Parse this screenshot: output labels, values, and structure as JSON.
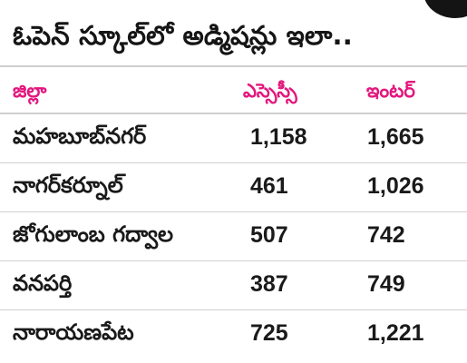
{
  "title": "ఓపెన్ స్కూల్‌లో అడ్మిషన్లు ఇలా..",
  "table": {
    "headers": {
      "district": "జిల్లా",
      "ssc": "ఎస్సెస్సీ",
      "inter": "ఇంటర్"
    },
    "rows": [
      {
        "district": "మహబూబ్‌నగర్",
        "ssc": "1,158",
        "inter": "1,665"
      },
      {
        "district": "నాగర్‌కర్నూల్",
        "ssc": "461",
        "inter": "1,026"
      },
      {
        "district": "జోగులాంబ గద్వాల",
        "ssc": "507",
        "inter": "742"
      },
      {
        "district": "వనపర్తి",
        "ssc": "387",
        "inter": "749"
      },
      {
        "district": "నారాయణపేట",
        "ssc": "725",
        "inter": "1,221"
      }
    ]
  },
  "colors": {
    "header_text": "#e3167d",
    "body_text": "#1a1a1a",
    "rule": "#cfcfcf"
  }
}
